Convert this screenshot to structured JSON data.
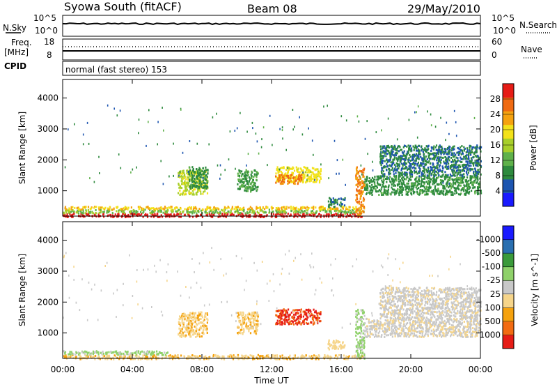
{
  "header": {
    "title": "Syowa South (fitACF)",
    "beam": "Beam 08",
    "date": "29/May/2010"
  },
  "top_panel": {
    "left_label": "N.Sky",
    "left_ticks": [
      "10^5",
      "10^0"
    ],
    "right_ticks": [
      "10^5",
      "10^0"
    ],
    "right_label": "N.Search"
  },
  "freq_panel": {
    "left_label": "Freq.",
    "left_unit": "[MHz]",
    "left_ticks": [
      "18",
      "8"
    ],
    "right_ticks": [
      "60",
      "0"
    ],
    "right_label": "Nave"
  },
  "cpid_panel": {
    "label": "CPID",
    "text": "normal (fast stereo) 153"
  },
  "colors": {
    "power": [
      "#1a1aff",
      "#1d55b0",
      "#2e8a3e",
      "#5fb14a",
      "#a8cf2a",
      "#f3e21a",
      "#f5a20f",
      "#ef6a12",
      "#e61c16"
    ],
    "velocity": [
      "#e61c16",
      "#f26b12",
      "#f5a20f",
      "#f6d58a",
      "#c8c8c8",
      "#8fd16a",
      "#3a9a3a",
      "#2a6fb0",
      "#1a1aff"
    ]
  },
  "chart_data": [
    {
      "type": "heatmap",
      "title": "",
      "xlabel": "Time UT",
      "ylabel": "Slant Range [km]",
      "xlim": [
        0,
        24
      ],
      "ylim": [
        180,
        4600
      ],
      "x_ticks": [
        "00:00",
        "04:00",
        "08:00",
        "12:00",
        "16:00",
        "20:00",
        "00:00"
      ],
      "y_ticks": [
        1000,
        2000,
        3000,
        4000
      ],
      "colorbar": {
        "label": "Power [dB]",
        "ticks": [
          4,
          8,
          12,
          16,
          20,
          24,
          28
        ],
        "range": [
          0,
          30
        ]
      },
      "regions": [
        {
          "x": [
            0.0,
            17.3
          ],
          "y": [
            180,
            300
          ],
          "value": 29
        },
        {
          "x": [
            0.0,
            17.3
          ],
          "y": [
            300,
            420
          ],
          "value": 13
        },
        {
          "x": [
            0.0,
            17.3
          ],
          "y": [
            420,
            520
          ],
          "value": 20
        },
        {
          "x": [
            6.6,
            8.3
          ],
          "y": [
            900,
            1700
          ],
          "value": 16
        },
        {
          "x": [
            7.2,
            8.3
          ],
          "y": [
            1100,
            1800
          ],
          "value": 9
        },
        {
          "x": [
            10.0,
            11.2
          ],
          "y": [
            1000,
            1700
          ],
          "value": 10
        },
        {
          "x": [
            12.2,
            14.8
          ],
          "y": [
            1300,
            1800
          ],
          "value": 18
        },
        {
          "x": [
            12.2,
            13.7
          ],
          "y": [
            1250,
            1550
          ],
          "value": 24
        },
        {
          "x": [
            15.2,
            16.2
          ],
          "y": [
            500,
            800
          ],
          "value": 7
        },
        {
          "x": [
            16.8,
            17.3
          ],
          "y": [
            200,
            1800
          ],
          "value": 23
        },
        {
          "x": [
            17.3,
            24.0
          ],
          "y": [
            900,
            1500
          ],
          "value": 9
        },
        {
          "x": [
            18.2,
            24.0
          ],
          "y": [
            1500,
            2500
          ],
          "value": 7
        }
      ]
    },
    {
      "type": "heatmap",
      "title": "",
      "xlabel": "Time UT",
      "ylabel": "Slant Range [km]",
      "xlim": [
        0,
        24
      ],
      "ylim": [
        180,
        4600
      ],
      "x_ticks": [
        "00:00",
        "04:00",
        "08:00",
        "12:00",
        "16:00",
        "20:00",
        "00:00"
      ],
      "y_ticks": [
        1000,
        2000,
        3000,
        4000
      ],
      "colorbar": {
        "label": "Velocity [m s^-1]",
        "ticks": [
          "1000",
          "500",
          "100",
          "25",
          "-25",
          "-100",
          "-500",
          "-1000"
        ]
      },
      "regions": [
        {
          "x": [
            0.0,
            17.3
          ],
          "y": [
            180,
            320
          ],
          "value": -300
        },
        {
          "x": [
            0.0,
            6.0
          ],
          "y": [
            320,
            450
          ],
          "value": 150
        },
        {
          "x": [
            6.6,
            8.3
          ],
          "y": [
            900,
            1700
          ],
          "value": -300
        },
        {
          "x": [
            10.0,
            11.2
          ],
          "y": [
            1000,
            1700
          ],
          "value": -300
        },
        {
          "x": [
            12.2,
            14.8
          ],
          "y": [
            1300,
            1800
          ],
          "value": -800
        },
        {
          "x": [
            15.2,
            16.2
          ],
          "y": [
            500,
            800
          ],
          "value": -200
        },
        {
          "x": [
            16.8,
            17.3
          ],
          "y": [
            200,
            1800
          ],
          "value": 150
        },
        {
          "x": [
            17.3,
            24.0
          ],
          "y": [
            900,
            1500
          ],
          "value": -80
        },
        {
          "x": [
            18.2,
            24.0
          ],
          "y": [
            1500,
            2500
          ],
          "value": -60
        }
      ]
    }
  ]
}
